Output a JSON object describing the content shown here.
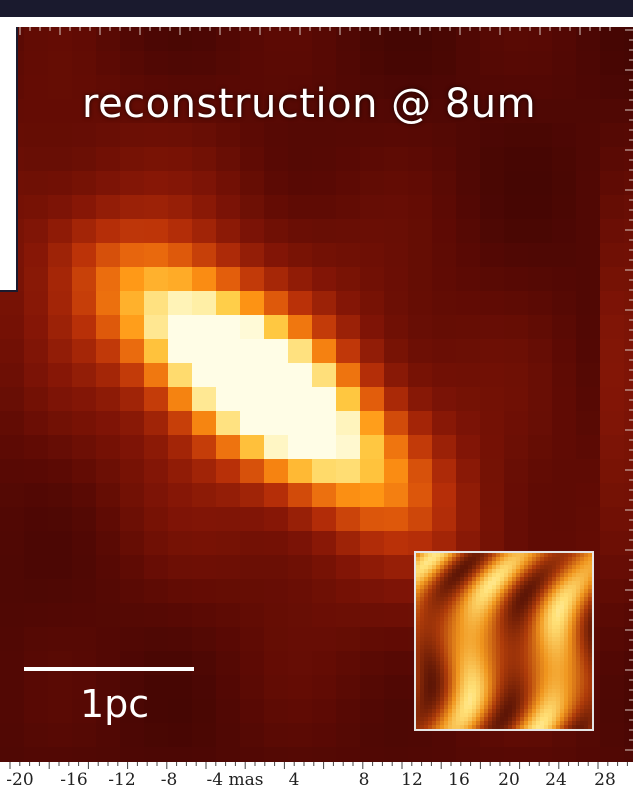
{
  "image": {
    "overlay_label": "reconstruction @ 8um",
    "scale_bar_label": "1pc",
    "x_axis": {
      "tick_labels": [
        "-20",
        "-16",
        "-12",
        "-8",
        "-4 mas",
        "4",
        "8",
        "12",
        "16",
        "20",
        "24",
        "28"
      ]
    },
    "colors": {
      "background_dark": "#4a0804",
      "core_bright": "#fffbe0",
      "mid_orange": "#ff8c10",
      "frame_dark": "#1a1a2e"
    }
  }
}
